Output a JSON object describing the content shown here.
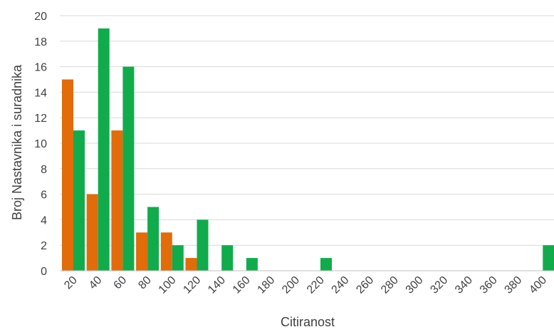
{
  "chart_data": {
    "type": "bar",
    "title": "",
    "xlabel": "Citiranost",
    "ylabel": "Broj Nastavnika i suradnika",
    "ylim": [
      0,
      20
    ],
    "yticks": [
      0,
      2,
      4,
      6,
      8,
      10,
      12,
      14,
      16,
      18,
      20
    ],
    "grid": true,
    "legend": "none",
    "categories": [
      "20",
      "40",
      "60",
      "80",
      "100",
      "120",
      "140",
      "160",
      "180",
      "200",
      "220",
      "240",
      "260",
      "280",
      "300",
      "320",
      "340",
      "360",
      "380",
      "400"
    ],
    "series": [
      {
        "color": "#E26B0A",
        "values": [
          15,
          6,
          11,
          3,
          3,
          1,
          0,
          0,
          0,
          0,
          0,
          0,
          0,
          0,
          0,
          0,
          0,
          0,
          0,
          0
        ]
      },
      {
        "color": "#10AC4C",
        "values": [
          11,
          19,
          16,
          5,
          2,
          4,
          2,
          1,
          0,
          0,
          1,
          0,
          0,
          0,
          0,
          0,
          0,
          0,
          0,
          2
        ]
      }
    ]
  }
}
